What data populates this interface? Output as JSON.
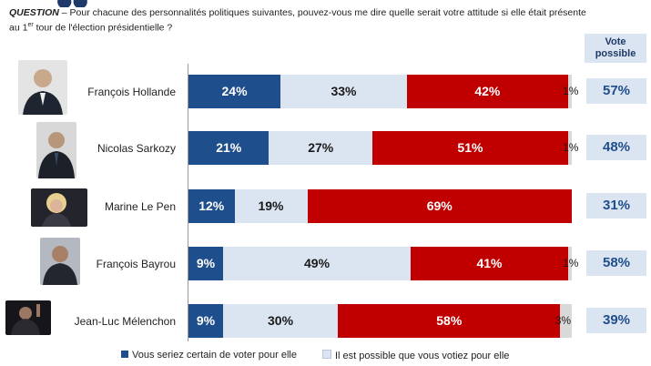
{
  "question": {
    "label": "QUESTION",
    "text": " – Pour chacune des personnalités politiques suivantes, pouvez-vous me dire quelle serait votre attitude si elle était présente au 1",
    "sup": "er",
    "text_end": " tour de l'élection présidentielle ?"
  },
  "header": {
    "vote_possible": "Vote possible"
  },
  "colors": {
    "certain": "#1f4e8c",
    "possible": "#dbe5f1",
    "refuse": "#c00000",
    "other": "#d9d9d9"
  },
  "legend": [
    {
      "label": "Vous seriez certain de voter pour elle",
      "color": "#1f4e8c"
    },
    {
      "label": "Il est possible que vous votiez pour elle",
      "color": "#dbe5f1"
    }
  ],
  "chart_data": {
    "type": "bar",
    "orientation": "horizontal-stacked",
    "categories": [
      "François Hollande",
      "Nicolas Sarkozy",
      "Marine Le Pen",
      "François Bayrou",
      "Jean-Luc Mélenchon"
    ],
    "series": [
      {
        "values": [
          24,
          21,
          12,
          9,
          9
        ],
        "labels": [
          "24%",
          "21%",
          "12%",
          "9%",
          "9%"
        ]
      },
      {
        "values": [
          33,
          27,
          19,
          49,
          30
        ],
        "labels": [
          "33%",
          "27%",
          "19%",
          "49%",
          "30%"
        ]
      },
      {
        "values": [
          42,
          51,
          69,
          41,
          58
        ],
        "labels": [
          "42%",
          "51%",
          "69%",
          "41%",
          "58%"
        ]
      },
      {
        "values": [
          1,
          1,
          0,
          1,
          3
        ],
        "labels": [
          "1%",
          "1%",
          "",
          "1%",
          "3%"
        ]
      }
    ],
    "vote_possible": [
      "57%",
      "48%",
      "31%",
      "58%",
      "39%"
    ],
    "xlim": [
      0,
      100
    ]
  }
}
